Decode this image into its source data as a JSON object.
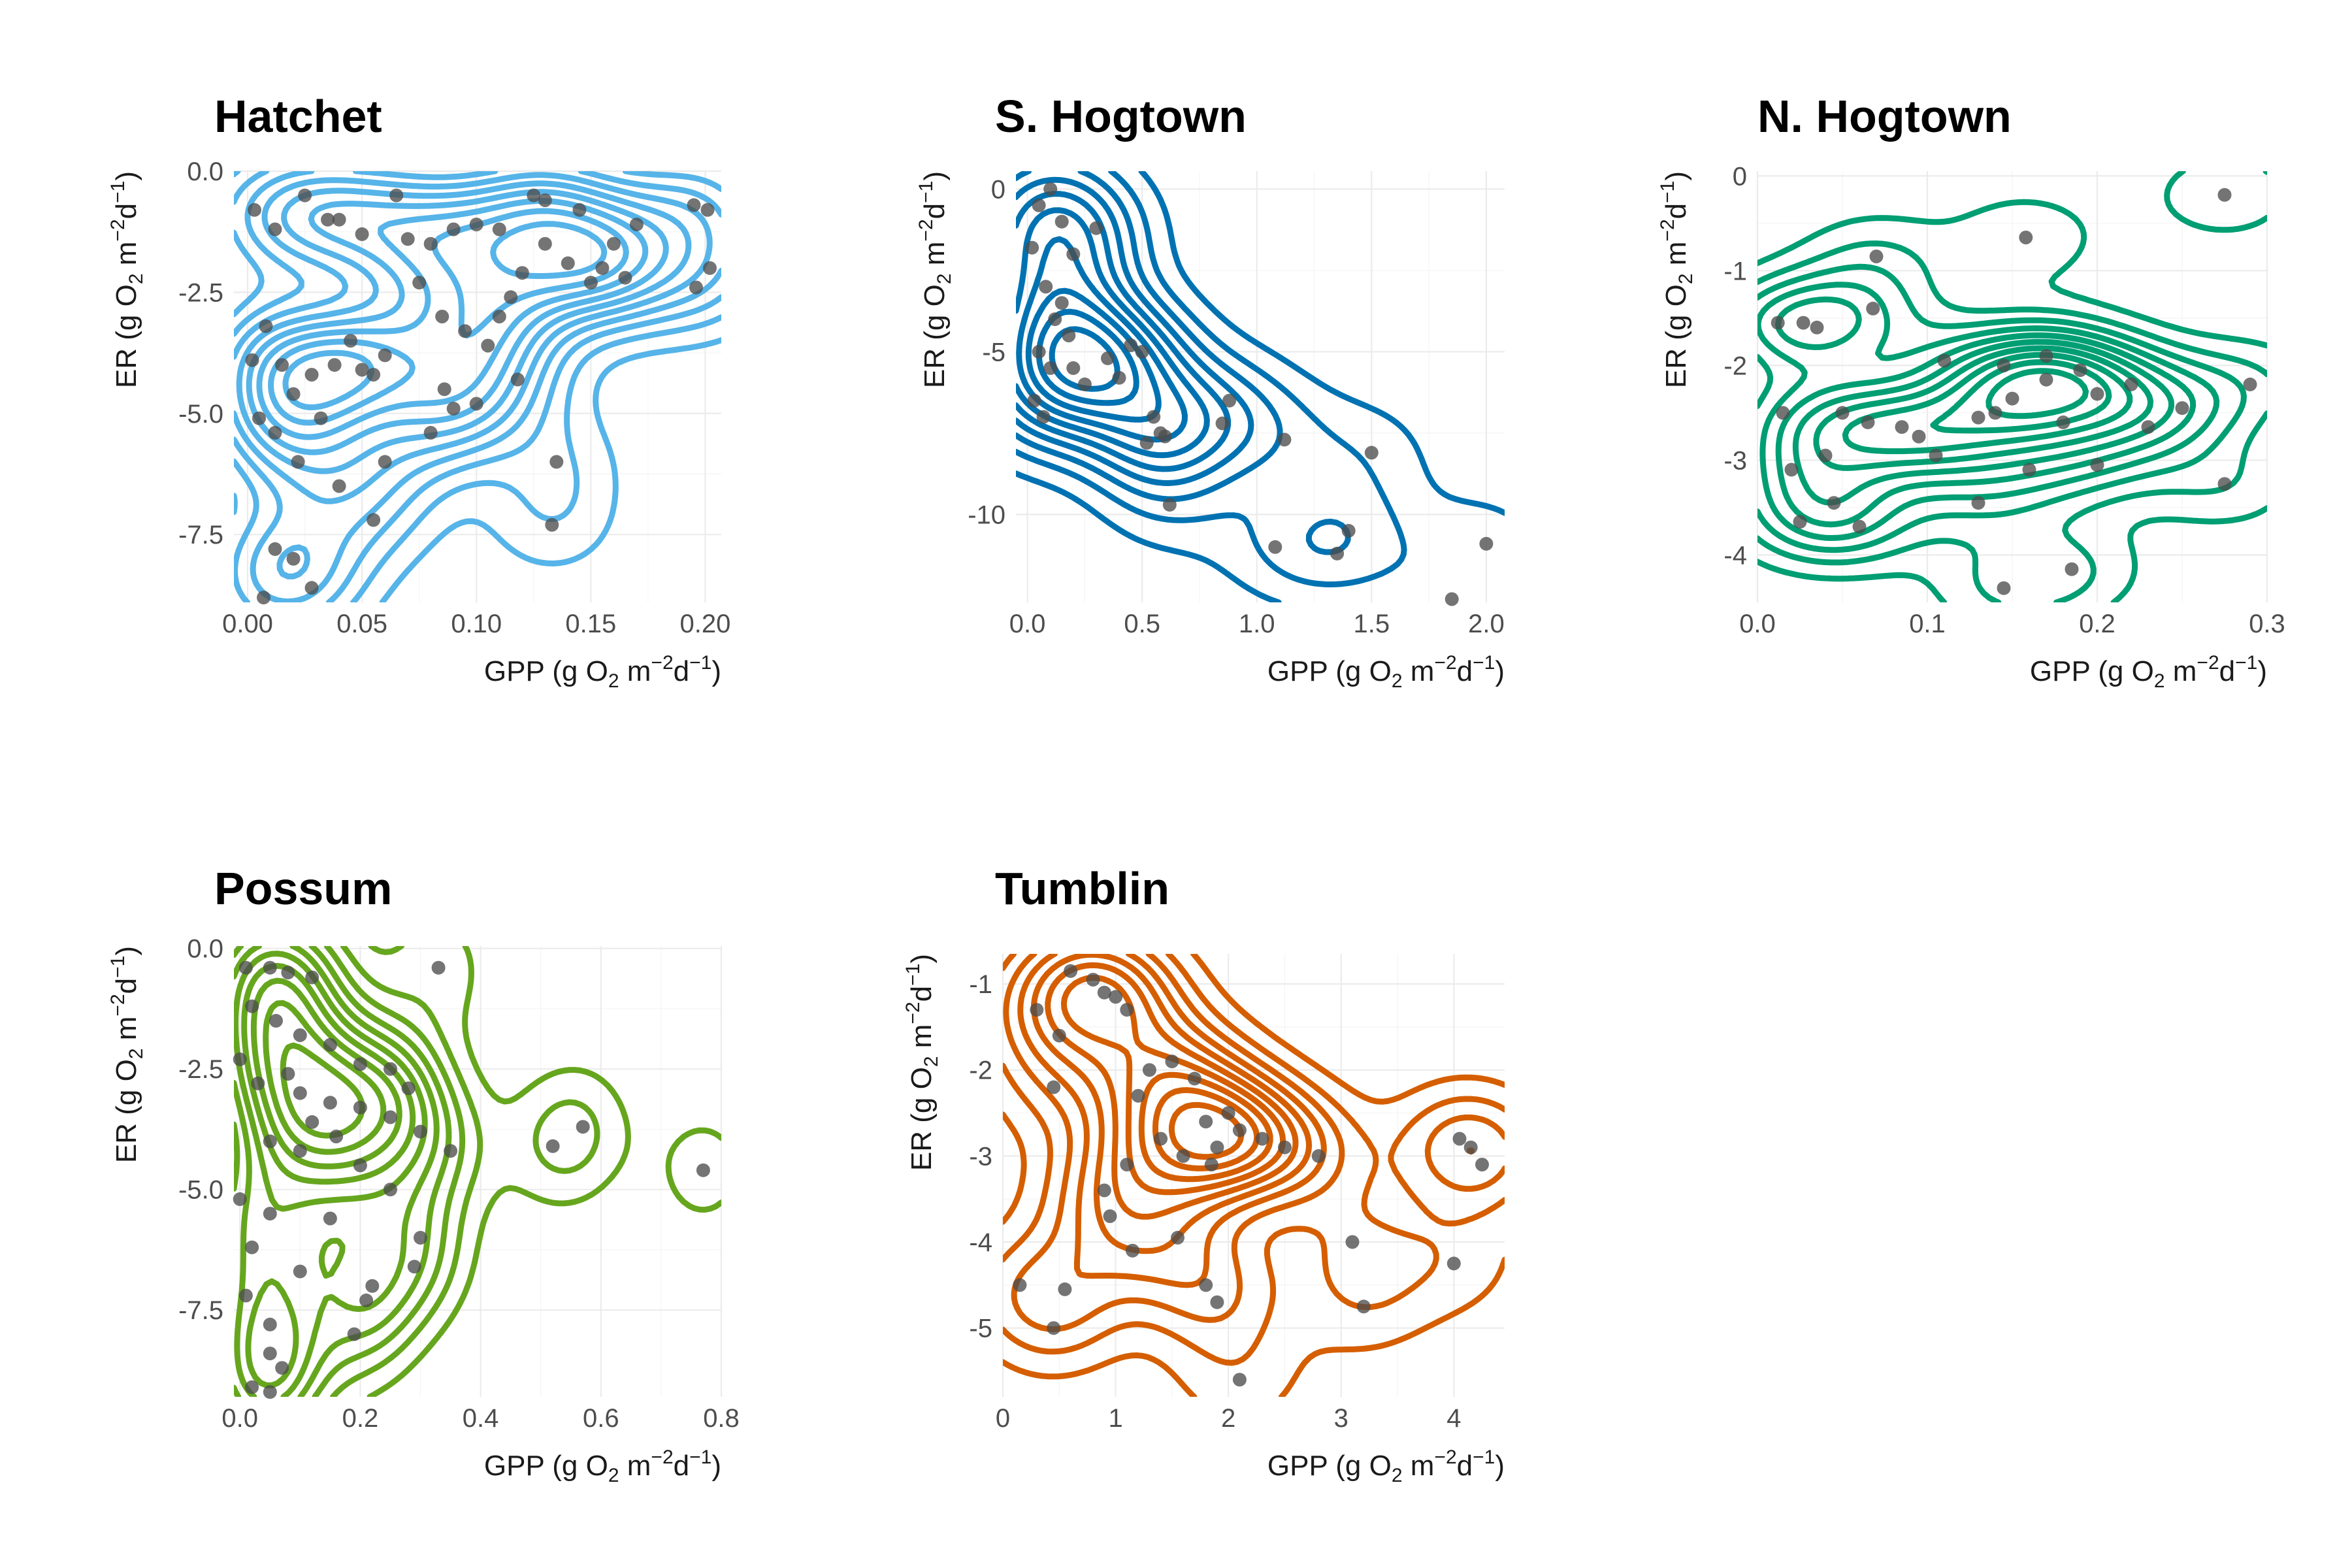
{
  "chart_data": [
    {
      "type": "scatter",
      "title": "Hatchet",
      "xlabel": "GPP (g O₂ m⁻²d⁻¹)",
      "ylabel": "ER (g O₂ m⁻²d⁻¹)",
      "xlim": [
        -0.006,
        0.207
      ],
      "ylim": [
        -8.9,
        0.0
      ],
      "xticks": [
        0,
        0.05,
        0.1,
        0.15,
        0.2
      ],
      "xtick_labels": [
        "0.00",
        "0.05",
        "0.10",
        "0.15",
        "0.20"
      ],
      "yticks": [
        0,
        -2.5,
        -5.0,
        -7.5
      ],
      "ytick_labels": [
        "0.0",
        "-2.5",
        "-5.0",
        "-7.5"
      ],
      "contour_color": "#56B4E9",
      "contour_centers": [
        [
          0.03,
          -4.6
        ],
        [
          0.095,
          -3.3
        ]
      ],
      "points": [
        [
          0.003,
          -0.8
        ],
        [
          0.012,
          -1.2
        ],
        [
          0.025,
          -0.5
        ],
        [
          0.035,
          -1.0
        ],
        [
          0.04,
          -1.0
        ],
        [
          0.05,
          -1.3
        ],
        [
          0.065,
          -0.5
        ],
        [
          0.07,
          -1.4
        ],
        [
          0.08,
          -1.5
        ],
        [
          0.09,
          -1.2
        ],
        [
          0.1,
          -1.1
        ],
        [
          0.11,
          -1.2
        ],
        [
          0.125,
          -0.5
        ],
        [
          0.13,
          -0.6
        ],
        [
          0.145,
          -0.8
        ],
        [
          0.16,
          -1.5
        ],
        [
          0.17,
          -1.1
        ],
        [
          0.195,
          -0.7
        ],
        [
          0.201,
          -0.8
        ],
        [
          0.202,
          -2.0
        ],
        [
          0.196,
          -2.4
        ],
        [
          0.002,
          -3.9
        ],
        [
          0.008,
          -3.2
        ],
        [
          0.015,
          -4.0
        ],
        [
          0.02,
          -4.6
        ],
        [
          0.028,
          -4.2
        ],
        [
          0.032,
          -5.1
        ],
        [
          0.038,
          -4.0
        ],
        [
          0.045,
          -3.5
        ],
        [
          0.05,
          -4.1
        ],
        [
          0.055,
          -4.2
        ],
        [
          0.06,
          -3.8
        ],
        [
          0.075,
          -2.3
        ],
        [
          0.085,
          -3.0
        ],
        [
          0.095,
          -3.3
        ],
        [
          0.105,
          -3.6
        ],
        [
          0.115,
          -2.6
        ],
        [
          0.12,
          -2.1
        ],
        [
          0.13,
          -1.5
        ],
        [
          0.14,
          -1.9
        ],
        [
          0.15,
          -2.3
        ],
        [
          0.155,
          -2.0
        ],
        [
          0.165,
          -2.2
        ],
        [
          0.005,
          -5.1
        ],
        [
          0.012,
          -5.4
        ],
        [
          0.022,
          -6.0
        ],
        [
          0.04,
          -6.5
        ],
        [
          0.055,
          -7.2
        ],
        [
          0.08,
          -5.4
        ],
        [
          0.09,
          -4.9
        ],
        [
          0.1,
          -4.8
        ],
        [
          0.06,
          -6.0
        ],
        [
          0.012,
          -7.8
        ],
        [
          0.02,
          -8.0
        ],
        [
          0.028,
          -8.6
        ],
        [
          0.007,
          -8.8
        ],
        [
          0.135,
          -6.0
        ],
        [
          0.133,
          -7.3
        ],
        [
          0.086,
          -4.5
        ],
        [
          0.11,
          -3.0
        ],
        [
          0.118,
          -4.3
        ]
      ]
    },
    {
      "type": "scatter",
      "title": "S. Hogtown",
      "xlabel": "GPP (g O₂ m⁻²d⁻¹)",
      "ylabel": "ER (g O₂ m⁻²d⁻¹)",
      "xlim": [
        -0.05,
        2.08
      ],
      "ylim": [
        -12.7,
        0.55
      ],
      "xticks": [
        0,
        0.5,
        1.0,
        1.5,
        2.0
      ],
      "xtick_labels": [
        "0.0",
        "0.5",
        "1.0",
        "1.5",
        "2.0"
      ],
      "yticks": [
        0,
        -5,
        -10
      ],
      "ytick_labels": [
        "0",
        "-5",
        "-10"
      ],
      "contour_color": "#0072B2",
      "contour_centers": [
        [
          0.08,
          -4.5
        ],
        [
          0.55,
          -7.1
        ],
        [
          1.52,
          -8.2
        ],
        [
          0.84,
          -6.9
        ]
      ],
      "points": [
        [
          0.1,
          0.0
        ],
        [
          0.05,
          -0.5
        ],
        [
          0.02,
          -1.8
        ],
        [
          0.15,
          -1.0
        ],
        [
          0.2,
          -2.0
        ],
        [
          0.3,
          -1.2
        ],
        [
          0.08,
          -3.0
        ],
        [
          0.12,
          -4.0
        ],
        [
          0.05,
          -5.0
        ],
        [
          0.1,
          -5.5
        ],
        [
          0.18,
          -4.5
        ],
        [
          0.25,
          -6.0
        ],
        [
          0.35,
          -5.2
        ],
        [
          0.4,
          -5.8
        ],
        [
          0.45,
          -4.8
        ],
        [
          0.5,
          -5.0
        ],
        [
          0.55,
          -7.0
        ],
        [
          0.58,
          -7.5
        ],
        [
          0.52,
          -7.8
        ],
        [
          0.6,
          -7.6
        ],
        [
          0.62,
          -9.7
        ],
        [
          0.85,
          -7.2
        ],
        [
          0.88,
          -6.5
        ],
        [
          1.12,
          -7.7
        ],
        [
          1.08,
          -11.0
        ],
        [
          1.35,
          -11.2
        ],
        [
          1.4,
          -10.5
        ],
        [
          1.5,
          -8.1
        ],
        [
          1.85,
          -12.6
        ],
        [
          2.0,
          -10.9
        ],
        [
          0.03,
          -6.5
        ],
        [
          0.07,
          -7.0
        ],
        [
          0.2,
          -5.5
        ],
        [
          0.15,
          -3.5
        ]
      ]
    },
    {
      "type": "scatter",
      "title": "N. Hogtown",
      "xlabel": "GPP (g O₂ m⁻²d⁻¹)",
      "ylabel": "ER (g O₂ m⁻²d⁻¹)",
      "xlim": [
        0.0,
        0.3
      ],
      "ylim": [
        -4.5,
        0.05
      ],
      "xticks": [
        0,
        0.1,
        0.2,
        0.3
      ],
      "xtick_labels": [
        "0.0",
        "0.1",
        "0.2",
        "0.3"
      ],
      "yticks": [
        0,
        -1,
        -2,
        -3,
        -4
      ],
      "ytick_labels": [
        "0",
        "-1",
        "-2",
        "-3",
        "-4"
      ],
      "contour_color": "#009E73",
      "contour_centers": [
        [
          0.165,
          -2.2
        ],
        [
          0.04,
          -3.55
        ],
        [
          0.165,
          -4.2
        ]
      ],
      "points": [
        [
          0.275,
          -0.2
        ],
        [
          0.158,
          -0.65
        ],
        [
          0.07,
          -0.85
        ],
        [
          0.012,
          -1.55
        ],
        [
          0.027,
          -1.55
        ],
        [
          0.035,
          -1.6
        ],
        [
          0.068,
          -1.4
        ],
        [
          0.11,
          -1.95
        ],
        [
          0.145,
          -2.0
        ],
        [
          0.17,
          -2.15
        ],
        [
          0.19,
          -2.05
        ],
        [
          0.22,
          -2.2
        ],
        [
          0.29,
          -2.2
        ],
        [
          0.25,
          -2.45
        ],
        [
          0.14,
          -2.5
        ],
        [
          0.13,
          -2.55
        ],
        [
          0.18,
          -2.6
        ],
        [
          0.23,
          -2.65
        ],
        [
          0.065,
          -2.6
        ],
        [
          0.085,
          -2.65
        ],
        [
          0.095,
          -2.75
        ],
        [
          0.05,
          -2.5
        ],
        [
          0.04,
          -2.95
        ],
        [
          0.105,
          -2.95
        ],
        [
          0.015,
          -2.5
        ],
        [
          0.02,
          -3.1
        ],
        [
          0.16,
          -3.1
        ],
        [
          0.13,
          -3.45
        ],
        [
          0.045,
          -3.45
        ],
        [
          0.025,
          -3.65
        ],
        [
          0.06,
          -3.7
        ],
        [
          0.15,
          -2.35
        ],
        [
          0.2,
          -3.05
        ],
        [
          0.275,
          -3.25
        ],
        [
          0.145,
          -4.35
        ],
        [
          0.185,
          -4.15
        ],
        [
          0.17,
          -1.9
        ],
        [
          0.2,
          -2.3
        ]
      ]
    },
    {
      "type": "scatter",
      "title": "Possum",
      "xlabel": "GPP (g O₂ m⁻²d⁻¹)",
      "ylabel": "ER (g O₂ m⁻²d⁻¹)",
      "xlim": [
        -0.01,
        0.8
      ],
      "ylim": [
        -9.3,
        0.05
      ],
      "xticks": [
        0,
        0.2,
        0.4,
        0.6,
        0.8
      ],
      "xtick_labels": [
        "0.0",
        "0.2",
        "0.4",
        "0.6",
        "0.8"
      ],
      "yticks": [
        0,
        -2.5,
        -5.0,
        -7.5
      ],
      "ytick_labels": [
        "0.0",
        "-2.5",
        "-5.0",
        "-7.5"
      ],
      "contour_color": "#66A61E",
      "contour_centers": [
        [
          0.11,
          -3.4
        ],
        [
          0.055,
          -8.2
        ],
        [
          0.55,
          -3.85
        ]
      ],
      "points": [
        [
          0.01,
          -0.4
        ],
        [
          0.05,
          -0.4
        ],
        [
          0.08,
          -0.5
        ],
        [
          0.12,
          -0.6
        ],
        [
          0.33,
          -0.4
        ],
        [
          0.02,
          -1.2
        ],
        [
          0.06,
          -1.5
        ],
        [
          0.1,
          -1.8
        ],
        [
          0.15,
          -2.0
        ],
        [
          0.2,
          -2.4
        ],
        [
          0.25,
          -2.5
        ],
        [
          0.0,
          -2.3
        ],
        [
          0.03,
          -2.8
        ],
        [
          0.08,
          -2.6
        ],
        [
          0.1,
          -3.0
        ],
        [
          0.15,
          -3.2
        ],
        [
          0.2,
          -3.3
        ],
        [
          0.28,
          -2.9
        ],
        [
          0.12,
          -3.6
        ],
        [
          0.16,
          -3.9
        ],
        [
          0.05,
          -4.0
        ],
        [
          0.1,
          -4.2
        ],
        [
          0.2,
          -4.5
        ],
        [
          0.25,
          -3.5
        ],
        [
          0.3,
          -3.8
        ],
        [
          0.35,
          -4.2
        ],
        [
          0.52,
          -4.1
        ],
        [
          0.57,
          -3.7
        ],
        [
          0.77,
          -4.6
        ],
        [
          0.0,
          -5.2
        ],
        [
          0.05,
          -5.5
        ],
        [
          0.15,
          -5.6
        ],
        [
          0.25,
          -5.0
        ],
        [
          0.3,
          -6.0
        ],
        [
          0.02,
          -6.2
        ],
        [
          0.1,
          -6.7
        ],
        [
          0.22,
          -7.0
        ],
        [
          0.29,
          -6.6
        ],
        [
          0.21,
          -7.3
        ],
        [
          0.01,
          -7.2
        ],
        [
          0.05,
          -7.8
        ],
        [
          0.05,
          -8.4
        ],
        [
          0.07,
          -8.7
        ],
        [
          0.02,
          -9.1
        ],
        [
          0.05,
          -9.2
        ],
        [
          0.19,
          -8.0
        ]
      ]
    },
    {
      "type": "scatter",
      "title": "Tumblin",
      "xlabel": "GPP (g O₂ m⁻²d⁻¹)",
      "ylabel": "ER (g O₂ m⁻²d⁻¹)",
      "xlim": [
        0.0,
        4.45
      ],
      "ylim": [
        -5.8,
        -0.65
      ],
      "xticks": [
        0,
        1,
        2,
        3,
        4
      ],
      "xtick_labels": [
        "0",
        "1",
        "2",
        "3",
        "4"
      ],
      "yticks": [
        -1,
        -2,
        -3,
        -4,
        -5
      ],
      "ytick_labels": [
        "-1",
        "-2",
        "-3",
        "-4",
        "-5"
      ],
      "contour_color": "#D55E00",
      "contour_centers": [
        [
          1.85,
          -2.75
        ],
        [
          0.75,
          -1.05
        ],
        [
          4.05,
          -2.95
        ]
      ],
      "points": [
        [
          0.6,
          -0.85
        ],
        [
          0.8,
          -0.95
        ],
        [
          0.9,
          -1.1
        ],
        [
          1.0,
          -1.15
        ],
        [
          1.1,
          -1.3
        ],
        [
          0.3,
          -1.3
        ],
        [
          0.5,
          -1.6
        ],
        [
          0.45,
          -2.2
        ],
        [
          1.2,
          -2.3
        ],
        [
          1.3,
          -2.0
        ],
        [
          1.5,
          -1.9
        ],
        [
          1.7,
          -2.1
        ],
        [
          1.8,
          -2.6
        ],
        [
          1.9,
          -2.9
        ],
        [
          2.0,
          -2.5
        ],
        [
          2.1,
          -2.7
        ],
        [
          2.3,
          -2.8
        ],
        [
          2.5,
          -2.9
        ],
        [
          2.8,
          -3.0
        ],
        [
          1.6,
          -3.0
        ],
        [
          1.4,
          -2.8
        ],
        [
          1.1,
          -3.1
        ],
        [
          0.9,
          -3.4
        ],
        [
          0.95,
          -3.7
        ],
        [
          1.15,
          -4.1
        ],
        [
          1.55,
          -3.95
        ],
        [
          1.8,
          -4.5
        ],
        [
          1.9,
          -4.7
        ],
        [
          2.1,
          -5.6
        ],
        [
          3.1,
          -4.0
        ],
        [
          3.2,
          -4.75
        ],
        [
          4.0,
          -4.25
        ],
        [
          4.05,
          -2.8
        ],
        [
          4.15,
          -2.9
        ],
        [
          4.25,
          -3.1
        ],
        [
          0.15,
          -4.5
        ],
        [
          0.45,
          -5.0
        ],
        [
          0.55,
          -4.55
        ],
        [
          1.85,
          -3.1
        ]
      ]
    }
  ]
}
